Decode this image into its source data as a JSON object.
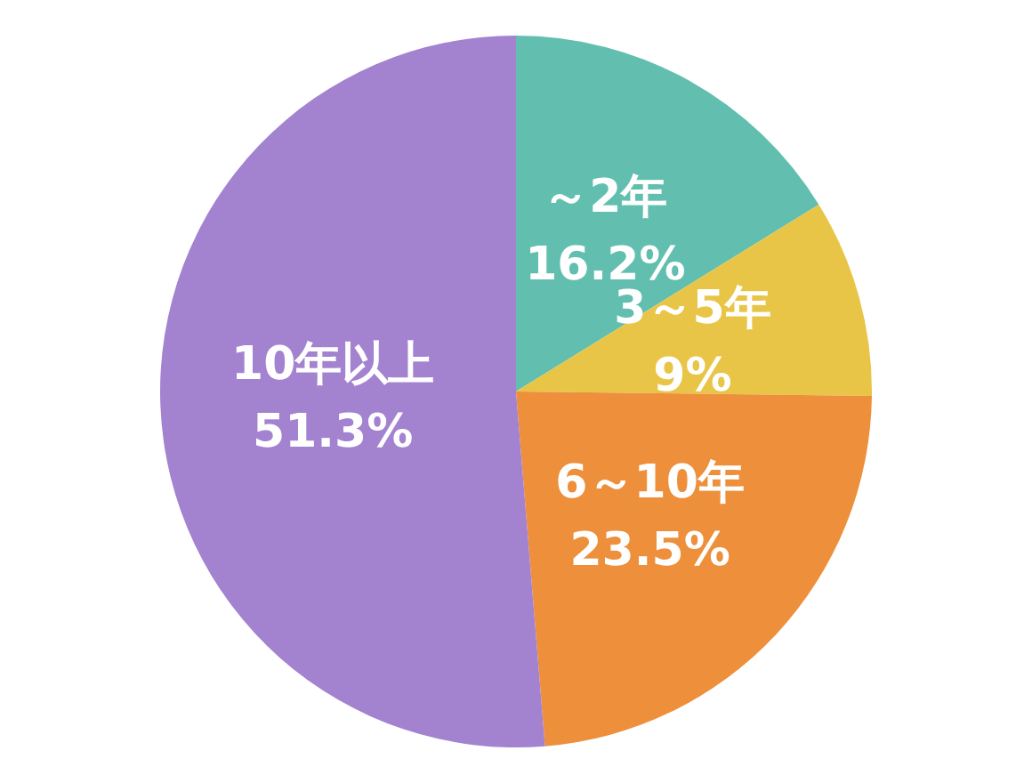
{
  "chart_data": {
    "type": "pie",
    "categories": [
      "～2年",
      "3～5年",
      "6～10年",
      "10年以上"
    ],
    "values": [
      16.2,
      9,
      23.5,
      51.3
    ],
    "value_labels": [
      "16.2%",
      "9%",
      "23.5%",
      "51.3%"
    ],
    "colors": [
      "#62bfb0",
      "#e8c547",
      "#ee8f3b",
      "#a382d0"
    ],
    "legend": false
  }
}
